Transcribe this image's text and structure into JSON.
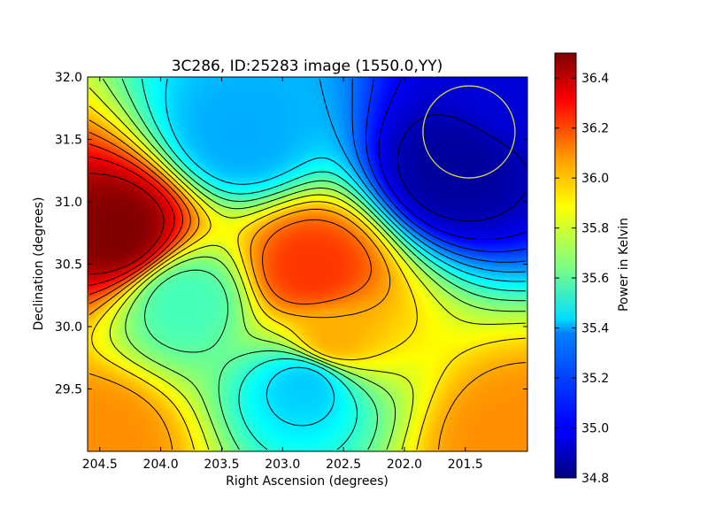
{
  "chart_data": {
    "type": "heatmap",
    "title": "3C286, ID:25283 image (1550.0,YY)",
    "xlabel": "Right Ascension (degrees)",
    "ylabel": "Declination (degrees)",
    "colorbar_label": "Power in Kelvin",
    "colormap": "jet",
    "x_range": [
      204.6,
      200.99
    ],
    "y_range": [
      29.0,
      32.0
    ],
    "x_ticks": [
      204.5,
      204.0,
      203.5,
      203.0,
      202.5,
      202.0,
      201.5
    ],
    "x_tick_labels": [
      "204.5",
      "204.0",
      "203.5",
      "203.0",
      "202.5",
      "202.0",
      "201.5"
    ],
    "y_ticks": [
      29.5,
      30.0,
      30.5,
      31.0,
      31.5,
      32.0
    ],
    "y_tick_labels": [
      "29.5",
      "30.0",
      "30.5",
      "31.0",
      "31.5",
      "32.0"
    ],
    "value_range": [
      34.8,
      36.5
    ],
    "colorbar_ticks": [
      34.8,
      35.0,
      35.2,
      35.4,
      35.6,
      35.8,
      36.0,
      36.2,
      36.4
    ],
    "colorbar_tick_labels": [
      "34.8",
      "35.0",
      "35.2",
      "35.4",
      "35.6",
      "35.8",
      "36.0",
      "36.2",
      "36.4"
    ],
    "contours": true,
    "features": [
      {
        "ra": 204.35,
        "dec": 30.75,
        "value": 36.5
      },
      {
        "ra": 202.75,
        "dec": 30.45,
        "value": 36.2
      },
      {
        "ra": 202.6,
        "dec": 29.9,
        "value": 36.0
      },
      {
        "ra": 203.8,
        "dec": 30.2,
        "value": 35.55
      },
      {
        "ra": 202.8,
        "dec": 29.55,
        "value": 35.35
      },
      {
        "ra": 203.35,
        "dec": 31.55,
        "value": 35.3
      },
      {
        "ra": 201.6,
        "dec": 31.25,
        "value": 34.85
      },
      {
        "ra": 201.1,
        "dec": 31.9,
        "value": 34.95
      },
      {
        "ra": 204.5,
        "dec": 29.1,
        "value": 36.05
      },
      {
        "ra": 201.1,
        "dec": 29.1,
        "value": 36.05
      }
    ],
    "marker": {
      "shape": "circle",
      "ra": 201.47,
      "dec": 31.56,
      "color": "#d8d84a"
    }
  }
}
